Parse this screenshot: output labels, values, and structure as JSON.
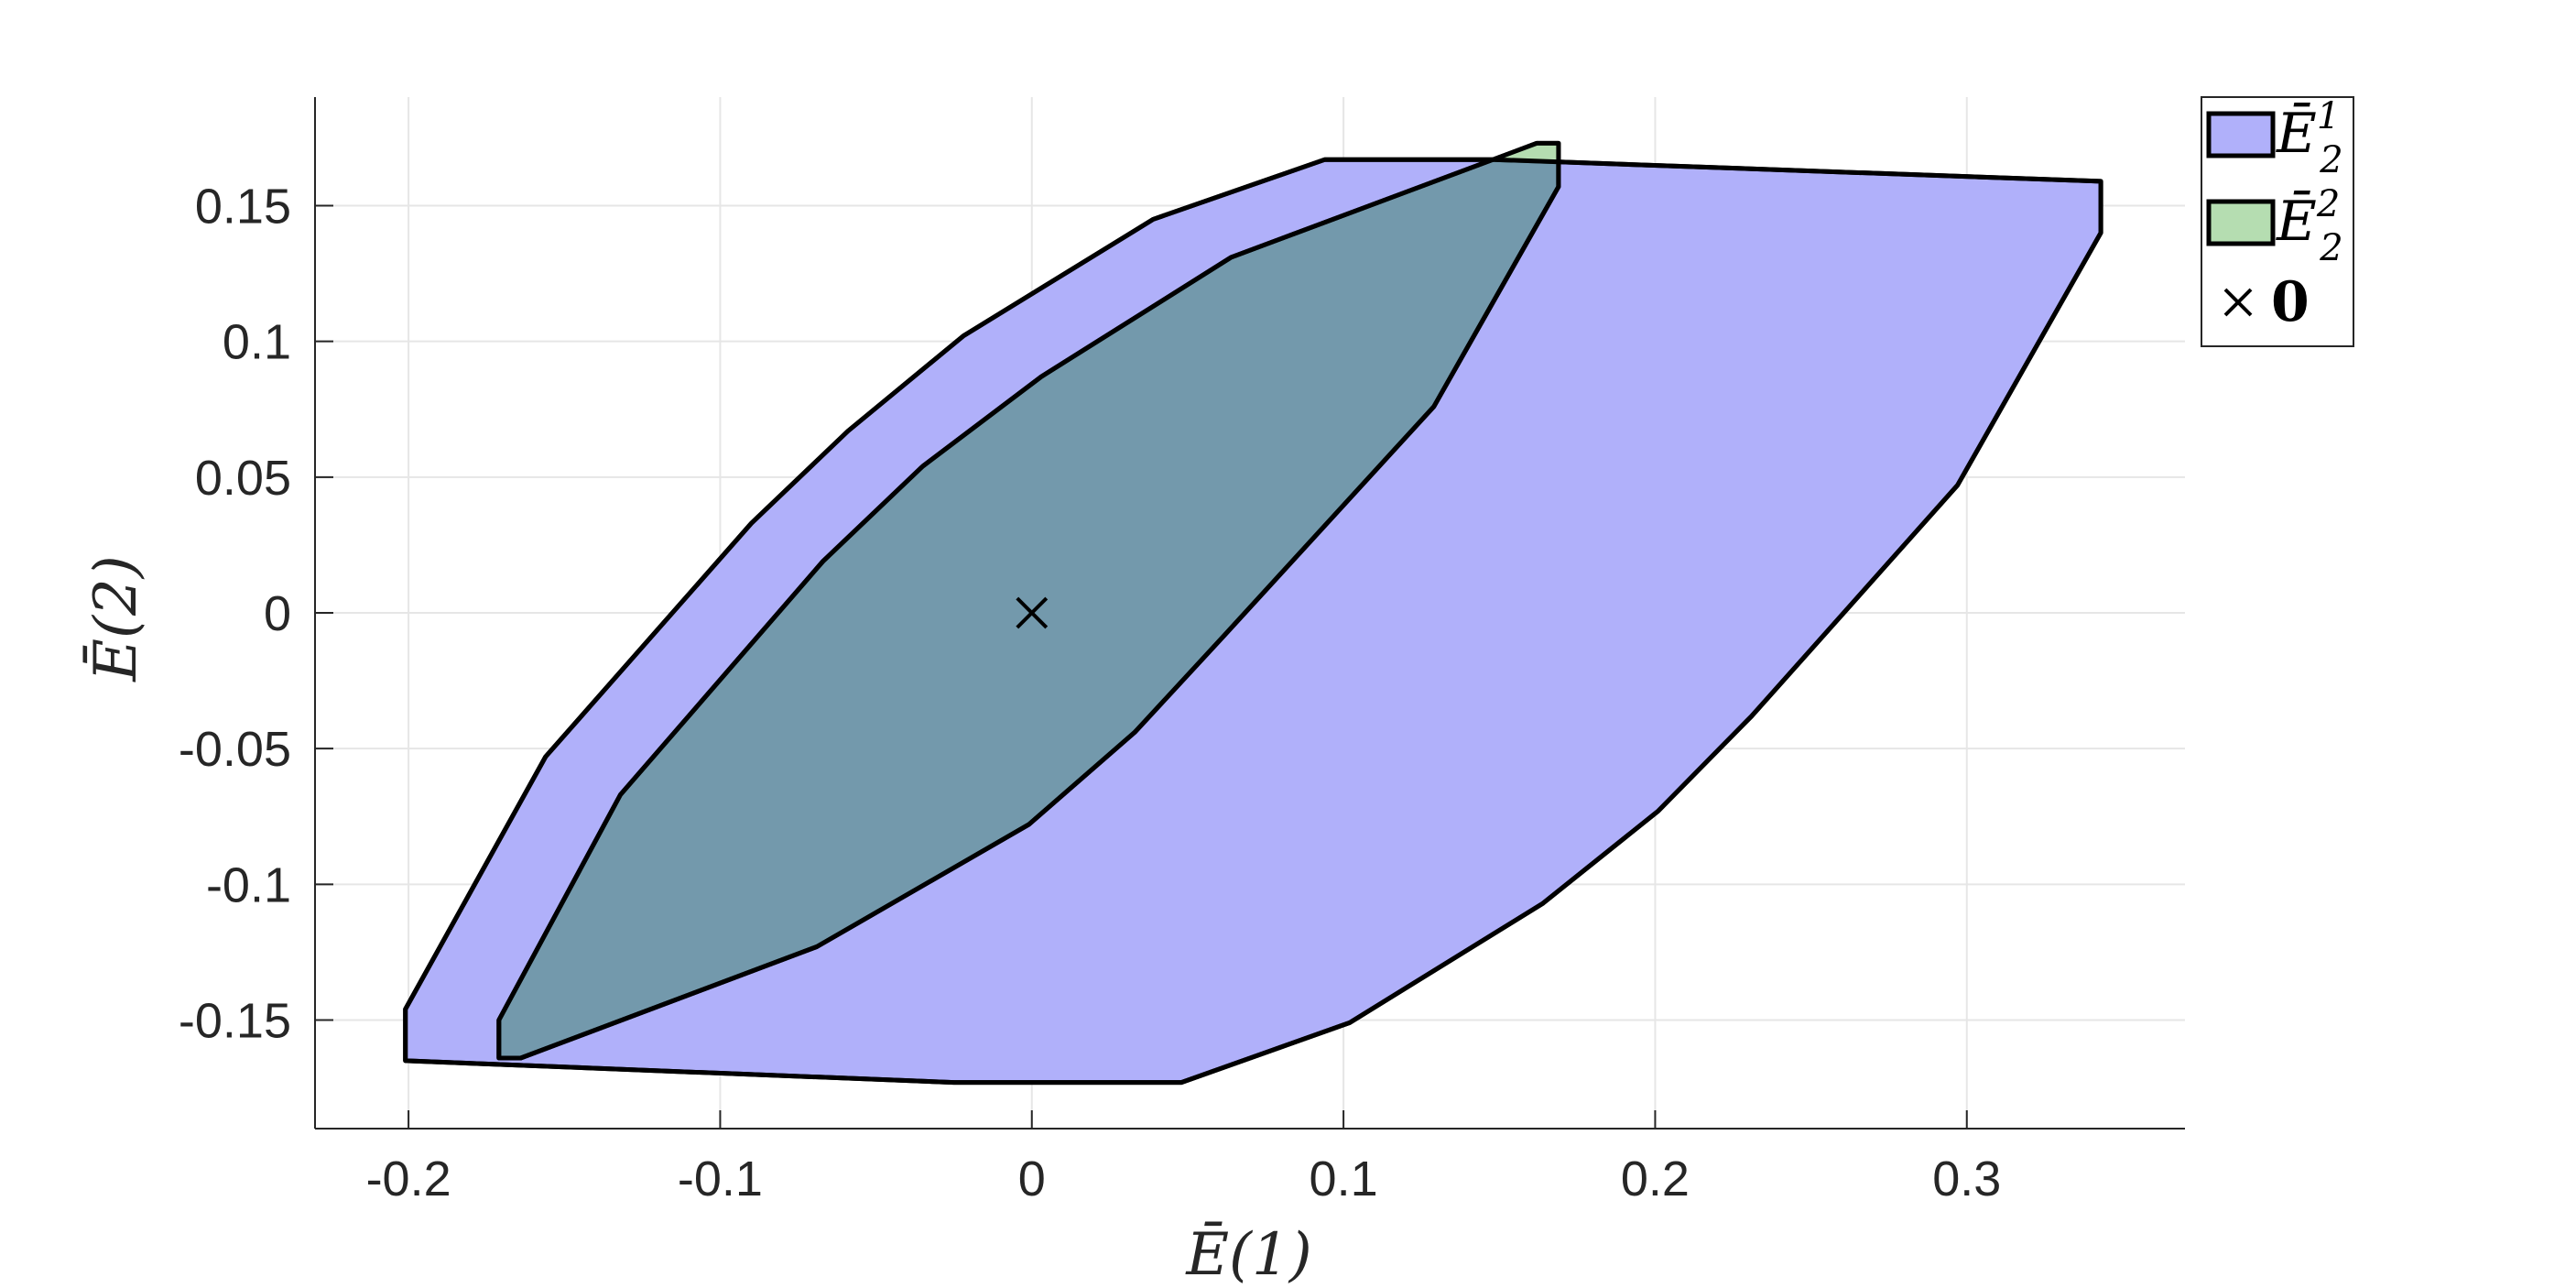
{
  "chart_data": {
    "type": "area",
    "xlabel": "Ē(1)",
    "ylabel": "Ē(2)",
    "xlim": [
      -0.23,
      0.37
    ],
    "ylim": [
      -0.19,
      0.19
    ],
    "xticks": [
      -0.2,
      -0.1,
      0,
      0.1,
      0.2,
      0.3
    ],
    "xtick_labels": [
      "-0.2",
      "-0.1",
      "0",
      "0.1",
      "0.2",
      "0.3"
    ],
    "yticks": [
      -0.15,
      -0.1,
      -0.05,
      0,
      0.05,
      0.1,
      0.15
    ],
    "ytick_labels": [
      "-0.15",
      "-0.1",
      "-0.05",
      "0",
      "0.05",
      "0.1",
      "0.15"
    ],
    "grid": true,
    "legend_position": "outside-top-right",
    "series": [
      {
        "name": "Ē₂¹",
        "legend_main": "Ē",
        "legend_sub": "2",
        "legend_sup": "1",
        "kind": "polygon",
        "fill_color": "#b0b0fa",
        "edge_color": "#000000",
        "points": [
          [
            -0.201,
            -0.165
          ],
          [
            -0.025,
            -0.173
          ],
          [
            0.048,
            -0.173
          ],
          [
            0.102,
            -0.151
          ],
          [
            0.164,
            -0.107
          ],
          [
            0.201,
            -0.073
          ],
          [
            0.231,
            -0.038
          ],
          [
            0.297,
            0.047
          ],
          [
            0.343,
            0.14
          ],
          [
            0.343,
            0.159
          ],
          [
            0.148,
            0.167
          ],
          [
            0.094,
            0.167
          ],
          [
            0.039,
            0.145
          ],
          [
            -0.022,
            0.102
          ],
          [
            -0.059,
            0.067
          ],
          [
            -0.09,
            0.033
          ],
          [
            -0.156,
            -0.053
          ],
          [
            -0.201,
            -0.146
          ]
        ]
      },
      {
        "name": "Ē₂²",
        "legend_main": "Ē",
        "legend_sub": "2",
        "legend_sup": "2",
        "kind": "polygon",
        "fill_color": "#b5ddb1",
        "edge_color": "#000000",
        "points": [
          [
            -0.171,
            -0.164
          ],
          [
            -0.164,
            -0.164
          ],
          [
            -0.069,
            -0.123
          ],
          [
            -0.001,
            -0.078
          ],
          [
            0.033,
            -0.044
          ],
          [
            0.062,
            -0.008
          ],
          [
            0.129,
            0.076
          ],
          [
            0.169,
            0.157
          ],
          [
            0.169,
            0.173
          ],
          [
            0.162,
            0.173
          ],
          [
            0.064,
            0.131
          ],
          [
            0.003,
            0.087
          ],
          [
            -0.035,
            0.054
          ],
          [
            -0.067,
            0.019
          ],
          [
            -0.132,
            -0.067
          ],
          [
            -0.171,
            -0.15
          ]
        ]
      },
      {
        "name": "0",
        "legend_main": "0",
        "kind": "marker",
        "marker": "x",
        "edge_color": "#000000",
        "points": [
          [
            0,
            0
          ]
        ]
      }
    ]
  }
}
